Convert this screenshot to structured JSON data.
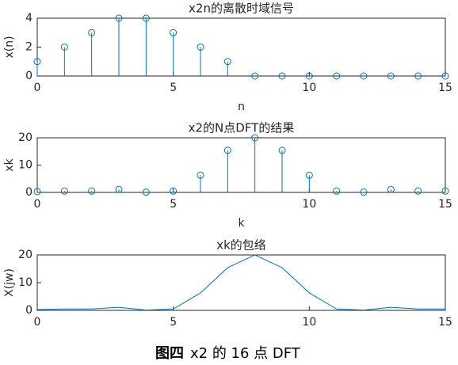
{
  "chart_data": [
    {
      "type": "stem",
      "title": "x2n的离散时域信号",
      "x_label": "n",
      "y_label": "x(n)",
      "color": "#0072BD",
      "x": [
        0,
        1,
        2,
        3,
        4,
        5,
        6,
        7,
        8,
        9,
        10,
        11,
        12,
        13,
        14,
        15
      ],
      "values": [
        1,
        2,
        3,
        4,
        4,
        3,
        2,
        1,
        0,
        0,
        0,
        0,
        0,
        0,
        0,
        0
      ],
      "xlim": [
        0,
        15
      ],
      "xticks": [
        0,
        5,
        10,
        15
      ],
      "ylim": [
        0,
        4
      ],
      "yticks": [
        0,
        2,
        4
      ]
    },
    {
      "type": "stem",
      "title": "x2的N点DFT的结果",
      "x_label": "k",
      "y_label": "xk",
      "color": "#0072BD",
      "x": [
        0,
        1,
        2,
        3,
        4,
        5,
        6,
        7,
        8,
        9,
        10,
        11,
        12,
        13,
        14,
        15
      ],
      "values": [
        0.3,
        0.5,
        0.5,
        1.1,
        0.1,
        0.5,
        6.3,
        15.4,
        20,
        15.4,
        6.3,
        0.5,
        0.1,
        1.1,
        0.5,
        0.5
      ],
      "xlim": [
        0,
        15
      ],
      "xticks": [
        0,
        5,
        10,
        15
      ],
      "ylim": [
        0,
        20
      ],
      "yticks": [
        0,
        10,
        20
      ]
    },
    {
      "type": "line",
      "title": "xk的包络",
      "y_label": "X(jw)",
      "color": "#0072BD",
      "x": [
        0,
        1,
        2,
        3,
        4,
        5,
        6,
        7,
        8,
        9,
        10,
        11,
        12,
        13,
        14,
        15
      ],
      "values": [
        0.3,
        0.5,
        0.5,
        1.1,
        0.1,
        0.5,
        6.3,
        15.4,
        20,
        15.4,
        6.3,
        0.5,
        0.1,
        1.1,
        0.5,
        0.5
      ],
      "xlim": [
        0,
        15
      ],
      "xticks": [
        0,
        5,
        10,
        15
      ],
      "ylim": [
        0,
        20
      ],
      "yticks": [
        0,
        10,
        20
      ]
    }
  ],
  "caption": {
    "label": "图四",
    "text": "x2 的 16 点 DFT"
  }
}
